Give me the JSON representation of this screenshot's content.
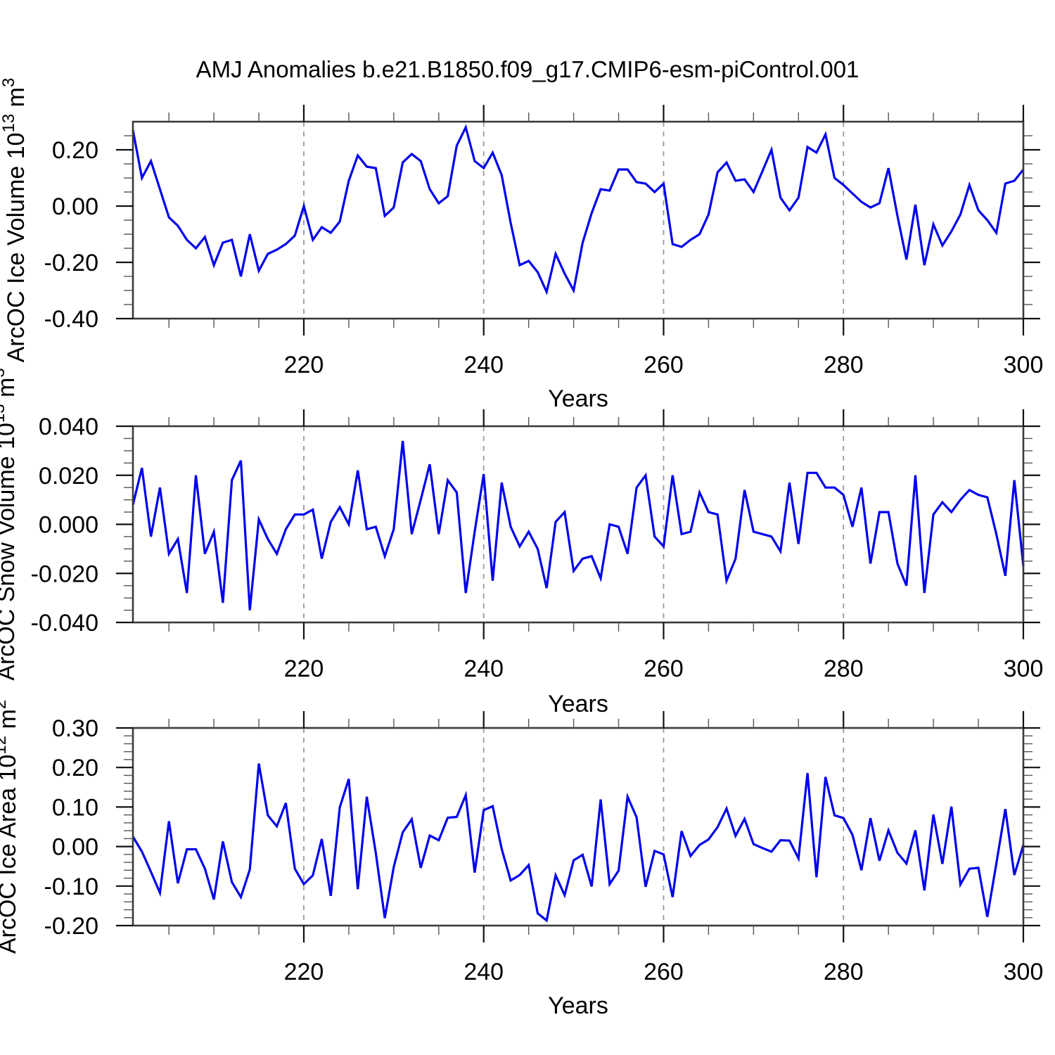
{
  "title": "AMJ Anomalies b.e21.B1850.f09_g17.CMIP6-esm-piControl.001",
  "line_color": "#0000ee",
  "frame_color": "#3a3a3a",
  "grid_color": "#9a9a9a",
  "chart_data": [
    {
      "type": "line",
      "name": "ice-volume",
      "ylabel_parts": [
        [
          "ArcOC Ice Volume 10",
          false
        ],
        [
          "13",
          true
        ],
        [
          " m",
          false
        ],
        [
          "3",
          true
        ]
      ],
      "xlabel": "Years",
      "x_start": 201,
      "x_end": 300,
      "xticks": [
        220,
        240,
        260,
        280,
        300
      ],
      "xtick_labels": [
        "220",
        "240",
        "260",
        "280",
        "300"
      ],
      "xminor_step": 5,
      "gridlines_x": [
        220,
        240,
        260,
        280
      ],
      "ylim": [
        -0.4,
        0.3
      ],
      "ytick_vals": [
        0.2,
        0.0,
        -0.2,
        -0.4
      ],
      "ytick_labels": [
        "0.20",
        "0.00",
        "-0.20",
        "-0.40"
      ],
      "yminor_step": 0.05,
      "values": [
        0.27,
        0.1,
        0.16,
        0.06,
        -0.04,
        -0.07,
        -0.12,
        -0.15,
        -0.11,
        -0.21,
        -0.13,
        -0.12,
        -0.25,
        -0.1,
        -0.23,
        -0.17,
        -0.155,
        -0.135,
        -0.105,
        0.0,
        -0.12,
        -0.075,
        -0.095,
        -0.055,
        0.09,
        0.18,
        0.14,
        0.135,
        -0.035,
        -0.005,
        0.155,
        0.185,
        0.16,
        0.06,
        0.01,
        0.035,
        0.215,
        0.28,
        0.16,
        0.135,
        0.19,
        0.11,
        -0.06,
        -0.21,
        -0.195,
        -0.235,
        -0.305,
        -0.17,
        -0.24,
        -0.3,
        -0.13,
        -0.025,
        0.06,
        0.055,
        0.13,
        0.13,
        0.085,
        0.08,
        0.05,
        0.08,
        -0.135,
        -0.145,
        -0.12,
        -0.1,
        -0.03,
        0.12,
        0.155,
        0.09,
        0.095,
        0.05,
        0.125,
        0.2,
        0.03,
        -0.015,
        0.03,
        0.21,
        0.19,
        0.255,
        0.1,
        0.075,
        0.045,
        0.015,
        -0.005,
        0.01,
        0.135,
        -0.035,
        -0.19,
        0.005,
        -0.21,
        -0.065,
        -0.14,
        -0.09,
        -0.03,
        0.075,
        -0.015,
        -0.05,
        -0.095,
        0.08,
        0.09,
        0.13
      ]
    },
    {
      "type": "line",
      "name": "snow-volume",
      "ylabel_parts": [
        [
          "ArcOC Snow Volume 10",
          false
        ],
        [
          "13",
          true
        ],
        [
          " m",
          false
        ],
        [
          "3",
          true
        ]
      ],
      "xlabel": "Years",
      "x_start": 201,
      "x_end": 300,
      "xticks": [
        220,
        240,
        260,
        280,
        300
      ],
      "xtick_labels": [
        "220",
        "240",
        "260",
        "280",
        "300"
      ],
      "xminor_step": 5,
      "gridlines_x": [
        220,
        240,
        260,
        280
      ],
      "ylim": [
        -0.04,
        0.04
      ],
      "ytick_vals": [
        0.04,
        0.02,
        0.0,
        -0.02,
        -0.04
      ],
      "ytick_labels": [
        "0.040",
        "0.020",
        "0.000",
        "-0.020",
        "-0.040"
      ],
      "yminor_step": 0.005,
      "values": [
        0.008,
        0.023,
        -0.005,
        0.015,
        -0.012,
        -0.006,
        -0.028,
        0.02,
        -0.012,
        -0.003,
        -0.032,
        0.018,
        0.026,
        -0.035,
        0.002,
        -0.006,
        -0.012,
        -0.002,
        0.004,
        0.004,
        0.006,
        -0.014,
        0.001,
        0.007,
        0.0,
        0.022,
        -0.002,
        -0.001,
        -0.013,
        -0.002,
        0.034,
        -0.004,
        0.01,
        0.0245,
        -0.004,
        0.018,
        0.013,
        -0.028,
        -0.003,
        0.0205,
        -0.023,
        0.017,
        -0.001,
        -0.009,
        -0.003,
        -0.01,
        -0.026,
        0.001,
        0.005,
        -0.019,
        -0.014,
        -0.013,
        -0.022,
        0.0,
        -0.001,
        -0.012,
        0.015,
        0.02,
        -0.005,
        -0.009,
        0.02,
        -0.004,
        -0.003,
        0.013,
        0.005,
        0.004,
        -0.023,
        -0.014,
        0.014,
        -0.003,
        -0.004,
        -0.005,
        -0.011,
        0.017,
        -0.008,
        0.021,
        0.021,
        0.015,
        0.015,
        0.012,
        -0.001,
        0.015,
        -0.016,
        0.005,
        0.005,
        -0.016,
        -0.025,
        0.02,
        -0.028,
        0.004,
        0.009,
        0.005,
        0.01,
        0.014,
        0.012,
        0.011,
        -0.004,
        -0.021,
        0.018,
        -0.017
      ]
    },
    {
      "type": "line",
      "name": "ice-area",
      "ylabel_parts": [
        [
          "ArcOC Ice Area 10",
          false
        ],
        [
          "12",
          true
        ],
        [
          " m",
          false
        ],
        [
          "2",
          true
        ]
      ],
      "xlabel": "Years",
      "x_start": 201,
      "x_end": 300,
      "xticks": [
        220,
        240,
        260,
        280,
        300
      ],
      "xtick_labels": [
        "220",
        "240",
        "260",
        "280",
        "300"
      ],
      "xminor_step": 5,
      "gridlines_x": [
        220,
        240,
        260,
        280
      ],
      "ylim": [
        -0.2,
        0.3
      ],
      "ytick_vals": [
        0.3,
        0.2,
        0.1,
        0.0,
        -0.1,
        -0.2
      ],
      "ytick_labels": [
        "0.30",
        "0.20",
        "0.10",
        "0.00",
        "-0.10",
        "-0.20"
      ],
      "yminor_step": 0.02,
      "values": [
        0.025,
        -0.013,
        -0.064,
        -0.117,
        0.064,
        -0.093,
        -0.007,
        -0.007,
        -0.056,
        -0.134,
        0.013,
        -0.09,
        -0.128,
        -0.058,
        0.21,
        0.079,
        0.051,
        0.11,
        -0.056,
        -0.095,
        -0.073,
        0.019,
        -0.125,
        0.099,
        0.171,
        -0.108,
        0.126,
        -0.016,
        -0.181,
        -0.052,
        0.036,
        0.069,
        -0.054,
        0.028,
        0.016,
        0.073,
        0.075,
        0.13,
        -0.066,
        0.092,
        0.102,
        -0.006,
        -0.086,
        -0.072,
        -0.047,
        -0.169,
        -0.187,
        -0.073,
        -0.123,
        -0.035,
        -0.021,
        -0.101,
        0.119,
        -0.095,
        -0.061,
        0.126,
        0.074,
        -0.102,
        -0.011,
        -0.02,
        -0.128,
        0.039,
        -0.024,
        0.004,
        0.018,
        0.049,
        0.096,
        0.027,
        0.07,
        0.006,
        -0.004,
        -0.013,
        0.016,
        0.015,
        -0.03,
        0.186,
        -0.078,
        0.176,
        0.079,
        0.072,
        0.03,
        -0.06,
        0.072,
        -0.036,
        0.041,
        -0.016,
        -0.043,
        0.041,
        -0.111,
        0.081,
        -0.044,
        0.101,
        -0.096,
        -0.056,
        -0.054,
        -0.178,
        -0.043,
        0.095,
        -0.072,
        0.004
      ]
    }
  ]
}
